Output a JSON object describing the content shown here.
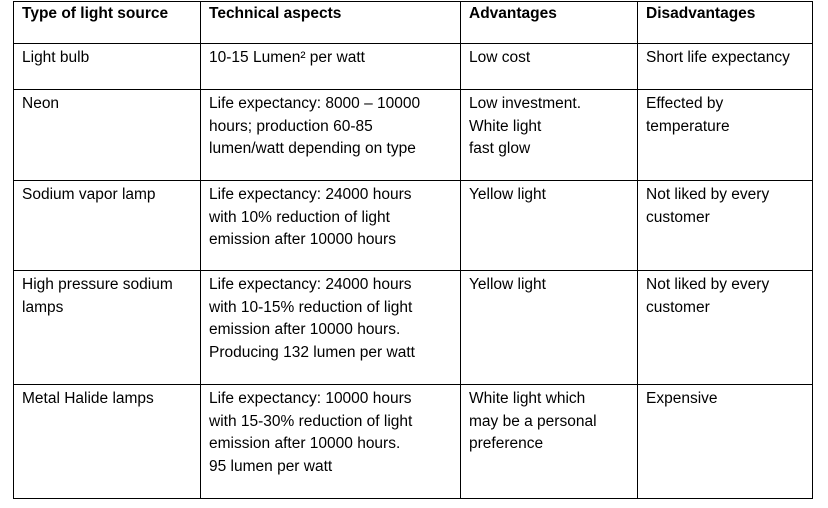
{
  "table": {
    "headers": [
      "Type of light source",
      "Technical aspects",
      "Advantages",
      "Disadvantages"
    ],
    "rows": [
      {
        "type": [
          "Light bulb"
        ],
        "technical": [
          "10-15 Lumen² per watt"
        ],
        "advantages": [
          "Low cost"
        ],
        "disadvantages": [
          "Short life expectancy"
        ]
      },
      {
        "type": [
          "Neon"
        ],
        "technical": [
          "Life expectancy: 8000 – 10000",
          "hours; production 60-85",
          "lumen/watt depending on type"
        ],
        "advantages": [
          "Low investment.",
          "White light",
          "fast glow"
        ],
        "disadvantages": [
          "Effected by",
          "temperature"
        ]
      },
      {
        "type": [
          "Sodium vapor lamp"
        ],
        "technical": [
          "Life expectancy: 24000 hours",
          "with 10% reduction of light",
          "emission after 10000 hours"
        ],
        "advantages": [
          "Yellow light"
        ],
        "disadvantages": [
          "Not liked by every",
          "customer"
        ]
      },
      {
        "type": [
          "High pressure sodium",
          "lamps"
        ],
        "technical": [
          "Life expectancy: 24000 hours",
          "with 10-15% reduction of light",
          "emission after 10000 hours.",
          "Producing 132 lumen per watt"
        ],
        "advantages": [
          "Yellow light"
        ],
        "disadvantages": [
          "Not liked by every",
          "customer"
        ]
      },
      {
        "type": [
          "Metal Halide lamps"
        ],
        "technical": [
          "Life expectancy: 10000 hours",
          "with 15-30% reduction of light",
          "emission after 10000 hours.",
          "95 lumen per watt"
        ],
        "advantages": [
          "White light which",
          "may be a personal",
          "preference"
        ],
        "disadvantages": [
          "Expensive"
        ]
      }
    ]
  }
}
